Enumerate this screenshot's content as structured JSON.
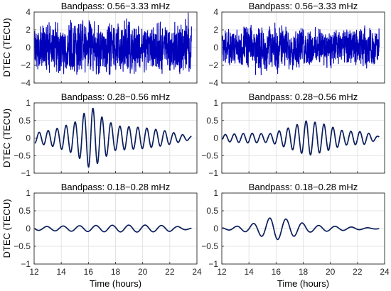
{
  "chart_data": [
    {
      "type": "line",
      "title": "Bandpass: 0.56−3.33 mHz",
      "xlabel": "",
      "ylabel": "DTEC (TECU)",
      "xlim": [
        12,
        24
      ],
      "ylim": [
        -4,
        4
      ],
      "yticks": [
        "−4",
        "−2",
        "0",
        "2",
        "4"
      ],
      "xticks": [],
      "grid": true,
      "series": [
        {
          "color": "#0000bb",
          "envelope": [
            [
              12,
              2.0
            ],
            [
              14,
              2.5
            ],
            [
              15,
              2.7
            ],
            [
              17,
              2.4
            ],
            [
              20,
              2.2
            ],
            [
              23.5,
              2.3
            ]
          ],
          "freq_mhz": [
            0.8,
            1.2,
            1.7,
            2.4,
            3.1
          ],
          "t_end": 23.6
        }
      ]
    },
    {
      "type": "line",
      "title": "Bandpass: 0.56−3.33 mHz",
      "xlabel": "",
      "ylabel": "",
      "xlim": [
        12,
        24
      ],
      "ylim": [
        -4,
        4
      ],
      "yticks": [
        "−4",
        "−2",
        "0",
        "2",
        "4"
      ],
      "xticks": [],
      "grid": true,
      "series": [
        {
          "color": "#0000bb",
          "envelope": [
            [
              12,
              1.6
            ],
            [
              14,
              1.9
            ],
            [
              16,
              2.2
            ],
            [
              18,
              1.8
            ],
            [
              20,
              1.7
            ],
            [
              23.5,
              1.8
            ]
          ],
          "freq_mhz": [
            0.8,
            1.2,
            1.7,
            2.4,
            3.1
          ],
          "t_end": 23.6
        }
      ]
    },
    {
      "type": "line",
      "title": "Bandpass: 0.28−0.56 mHz",
      "xlabel": "",
      "ylabel": "DTEC (TECU)",
      "xlim": [
        12,
        24
      ],
      "ylim": [
        -1,
        1
      ],
      "yticks": [
        "−1",
        "−0.5",
        "0",
        "0.5",
        "1"
      ],
      "xticks": [],
      "grid": true,
      "series": [
        {
          "color": "#0a1e5c",
          "envelope": [
            [
              12.2,
              0.15
            ],
            [
              13.5,
              0.25
            ],
            [
              15,
              0.45
            ],
            [
              16.2,
              0.9
            ],
            [
              17,
              0.6
            ],
            [
              18,
              0.35
            ],
            [
              20,
              0.3
            ],
            [
              21.5,
              0.22
            ],
            [
              23.5,
              0.05
            ]
          ],
          "freq_mhz": [
            0.42
          ],
          "t_end": 23.6
        }
      ]
    },
    {
      "type": "line",
      "title": "Bandpass: 0.28−0.56 mHz",
      "xlabel": "",
      "ylabel": "",
      "xlim": [
        12,
        24
      ],
      "ylim": [
        -1,
        1
      ],
      "yticks": [
        "−1",
        "−0.5",
        "0",
        "0.5",
        "1"
      ],
      "xticks": [],
      "grid": true,
      "series": [
        {
          "color": "#0a1e5c",
          "envelope": [
            [
              12.2,
              0.1
            ],
            [
              14,
              0.14
            ],
            [
              15.5,
              0.12
            ],
            [
              17,
              0.3
            ],
            [
              18.3,
              0.5
            ],
            [
              19.5,
              0.4
            ],
            [
              21,
              0.2
            ],
            [
              22.5,
              0.18
            ],
            [
              23.5,
              0.05
            ]
          ],
          "freq_mhz": [
            0.42
          ],
          "t_end": 23.6
        }
      ]
    },
    {
      "type": "line",
      "title": "Bandpass: 0.18−0.28 mHz",
      "xlabel": "Time (hours)",
      "ylabel": "DTEC (TECU)",
      "xlim": [
        12,
        24
      ],
      "ylim": [
        -1,
        1
      ],
      "yticks": [
        "−1",
        "−0.5",
        "0",
        "0.5",
        "1"
      ],
      "xticks": [
        "12",
        "14",
        "16",
        "18",
        "20",
        "22",
        "24"
      ],
      "grid": true,
      "series": [
        {
          "color": "#0a1e5c",
          "envelope": [
            [
              12.2,
              0.05
            ],
            [
              14,
              0.07
            ],
            [
              17,
              0.09
            ],
            [
              20,
              0.1
            ],
            [
              22,
              0.08
            ],
            [
              23.5,
              0.02
            ]
          ],
          "freq_mhz": [
            0.23
          ],
          "t_end": 23.6
        }
      ]
    },
    {
      "type": "line",
      "title": "Bandpass: 0.18−0.28 mHz",
      "xlabel": "Time (hours)",
      "ylabel": "",
      "xlim": [
        12,
        24
      ],
      "ylim": [
        -1,
        1
      ],
      "yticks": [
        "−1",
        "−0.5",
        "0",
        "0.5",
        "1"
      ],
      "xticks": [
        "12",
        "14",
        "16",
        "18",
        "20",
        "22",
        "24"
      ],
      "grid": true,
      "series": [
        {
          "color": "#0a1e5c",
          "envelope": [
            [
              12.2,
              0.03
            ],
            [
              14,
              0.1
            ],
            [
              15.8,
              0.33
            ],
            [
              17,
              0.25
            ],
            [
              18.5,
              0.1
            ],
            [
              20.5,
              0.06
            ],
            [
              23.5,
              0.01
            ]
          ],
          "freq_mhz": [
            0.23
          ],
          "t_end": 23.6
        }
      ]
    }
  ]
}
